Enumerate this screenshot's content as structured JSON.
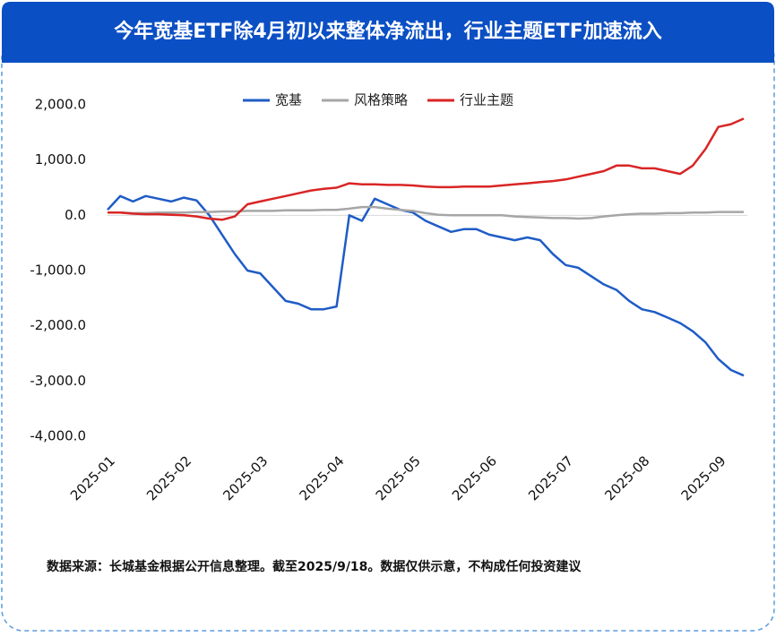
{
  "chart_data": {
    "type": "line",
    "title": "今年宽基ETF除4月初以来整体净流出，行业主题ETF加速流入",
    "note": "数据来源：长城基金根据公开信息整理。截至2025/9/18。数据仅供示意，不构成任何投资建议",
    "categories": [
      "2025-01",
      null,
      null,
      null,
      null,
      null,
      "2025-02",
      null,
      null,
      null,
      null,
      null,
      "2025-03",
      null,
      null,
      null,
      null,
      null,
      "2025-04",
      null,
      null,
      null,
      null,
      null,
      "2025-05",
      null,
      null,
      null,
      null,
      null,
      "2025-06",
      null,
      null,
      null,
      null,
      null,
      "2025-07",
      null,
      null,
      null,
      null,
      null,
      "2025-08",
      null,
      null,
      null,
      null,
      null,
      "2025-09",
      null,
      null
    ],
    "series": [
      {
        "name": "宽基",
        "color": "#1f5cc6",
        "values": [
          100,
          350,
          250,
          350,
          300,
          250,
          320,
          270,
          0,
          -350,
          -700,
          -1000,
          -1050,
          -1300,
          -1550,
          -1600,
          -1700,
          -1700,
          -1650,
          0,
          -100,
          300,
          200,
          100,
          50,
          -100,
          -200,
          -300,
          -250,
          -250,
          -350,
          -400,
          -450,
          -400,
          -450,
          -700,
          -900,
          -950,
          -1100,
          -1250,
          -1350,
          -1550,
          -1700,
          -1750,
          -1850,
          -1950,
          -2100,
          -2300,
          -2600,
          -2800,
          -2900
        ]
      },
      {
        "name": "风格策略",
        "color": "#a6a6a6",
        "values": [
          50,
          50,
          40,
          40,
          50,
          50,
          50,
          60,
          60,
          70,
          70,
          80,
          80,
          80,
          90,
          90,
          90,
          100,
          100,
          120,
          150,
          150,
          120,
          100,
          80,
          40,
          10,
          0,
          0,
          0,
          0,
          0,
          -20,
          -30,
          -40,
          -50,
          -50,
          -60,
          -50,
          -20,
          0,
          20,
          30,
          30,
          40,
          40,
          50,
          50,
          60,
          60,
          60
        ]
      },
      {
        "name": "行业主题",
        "color": "#d92525",
        "values": [
          50,
          50,
          30,
          20,
          20,
          10,
          0,
          -20,
          -60,
          -80,
          -20,
          200,
          250,
          300,
          350,
          400,
          450,
          480,
          500,
          580,
          560,
          560,
          550,
          550,
          540,
          520,
          510,
          510,
          520,
          520,
          520,
          540,
          560,
          580,
          600,
          620,
          650,
          700,
          750,
          800,
          900,
          900,
          850,
          850,
          800,
          750,
          900,
          1200,
          1600,
          1650,
          1750
        ]
      }
    ],
    "ylim": [
      -4000,
      2000
    ],
    "yticks": [
      {
        "value": -4000,
        "label": "-4,000.0"
      },
      {
        "value": -3000,
        "label": "-3,000.0"
      },
      {
        "value": -2000,
        "label": "-2,000.0"
      },
      {
        "value": -1000,
        "label": "-1,000.0"
      },
      {
        "value": 0,
        "label": "0.0"
      },
      {
        "value": 1000,
        "label": "1,000.0"
      },
      {
        "value": 2000,
        "label": "2,000.0"
      }
    ],
    "legend": "top"
  }
}
